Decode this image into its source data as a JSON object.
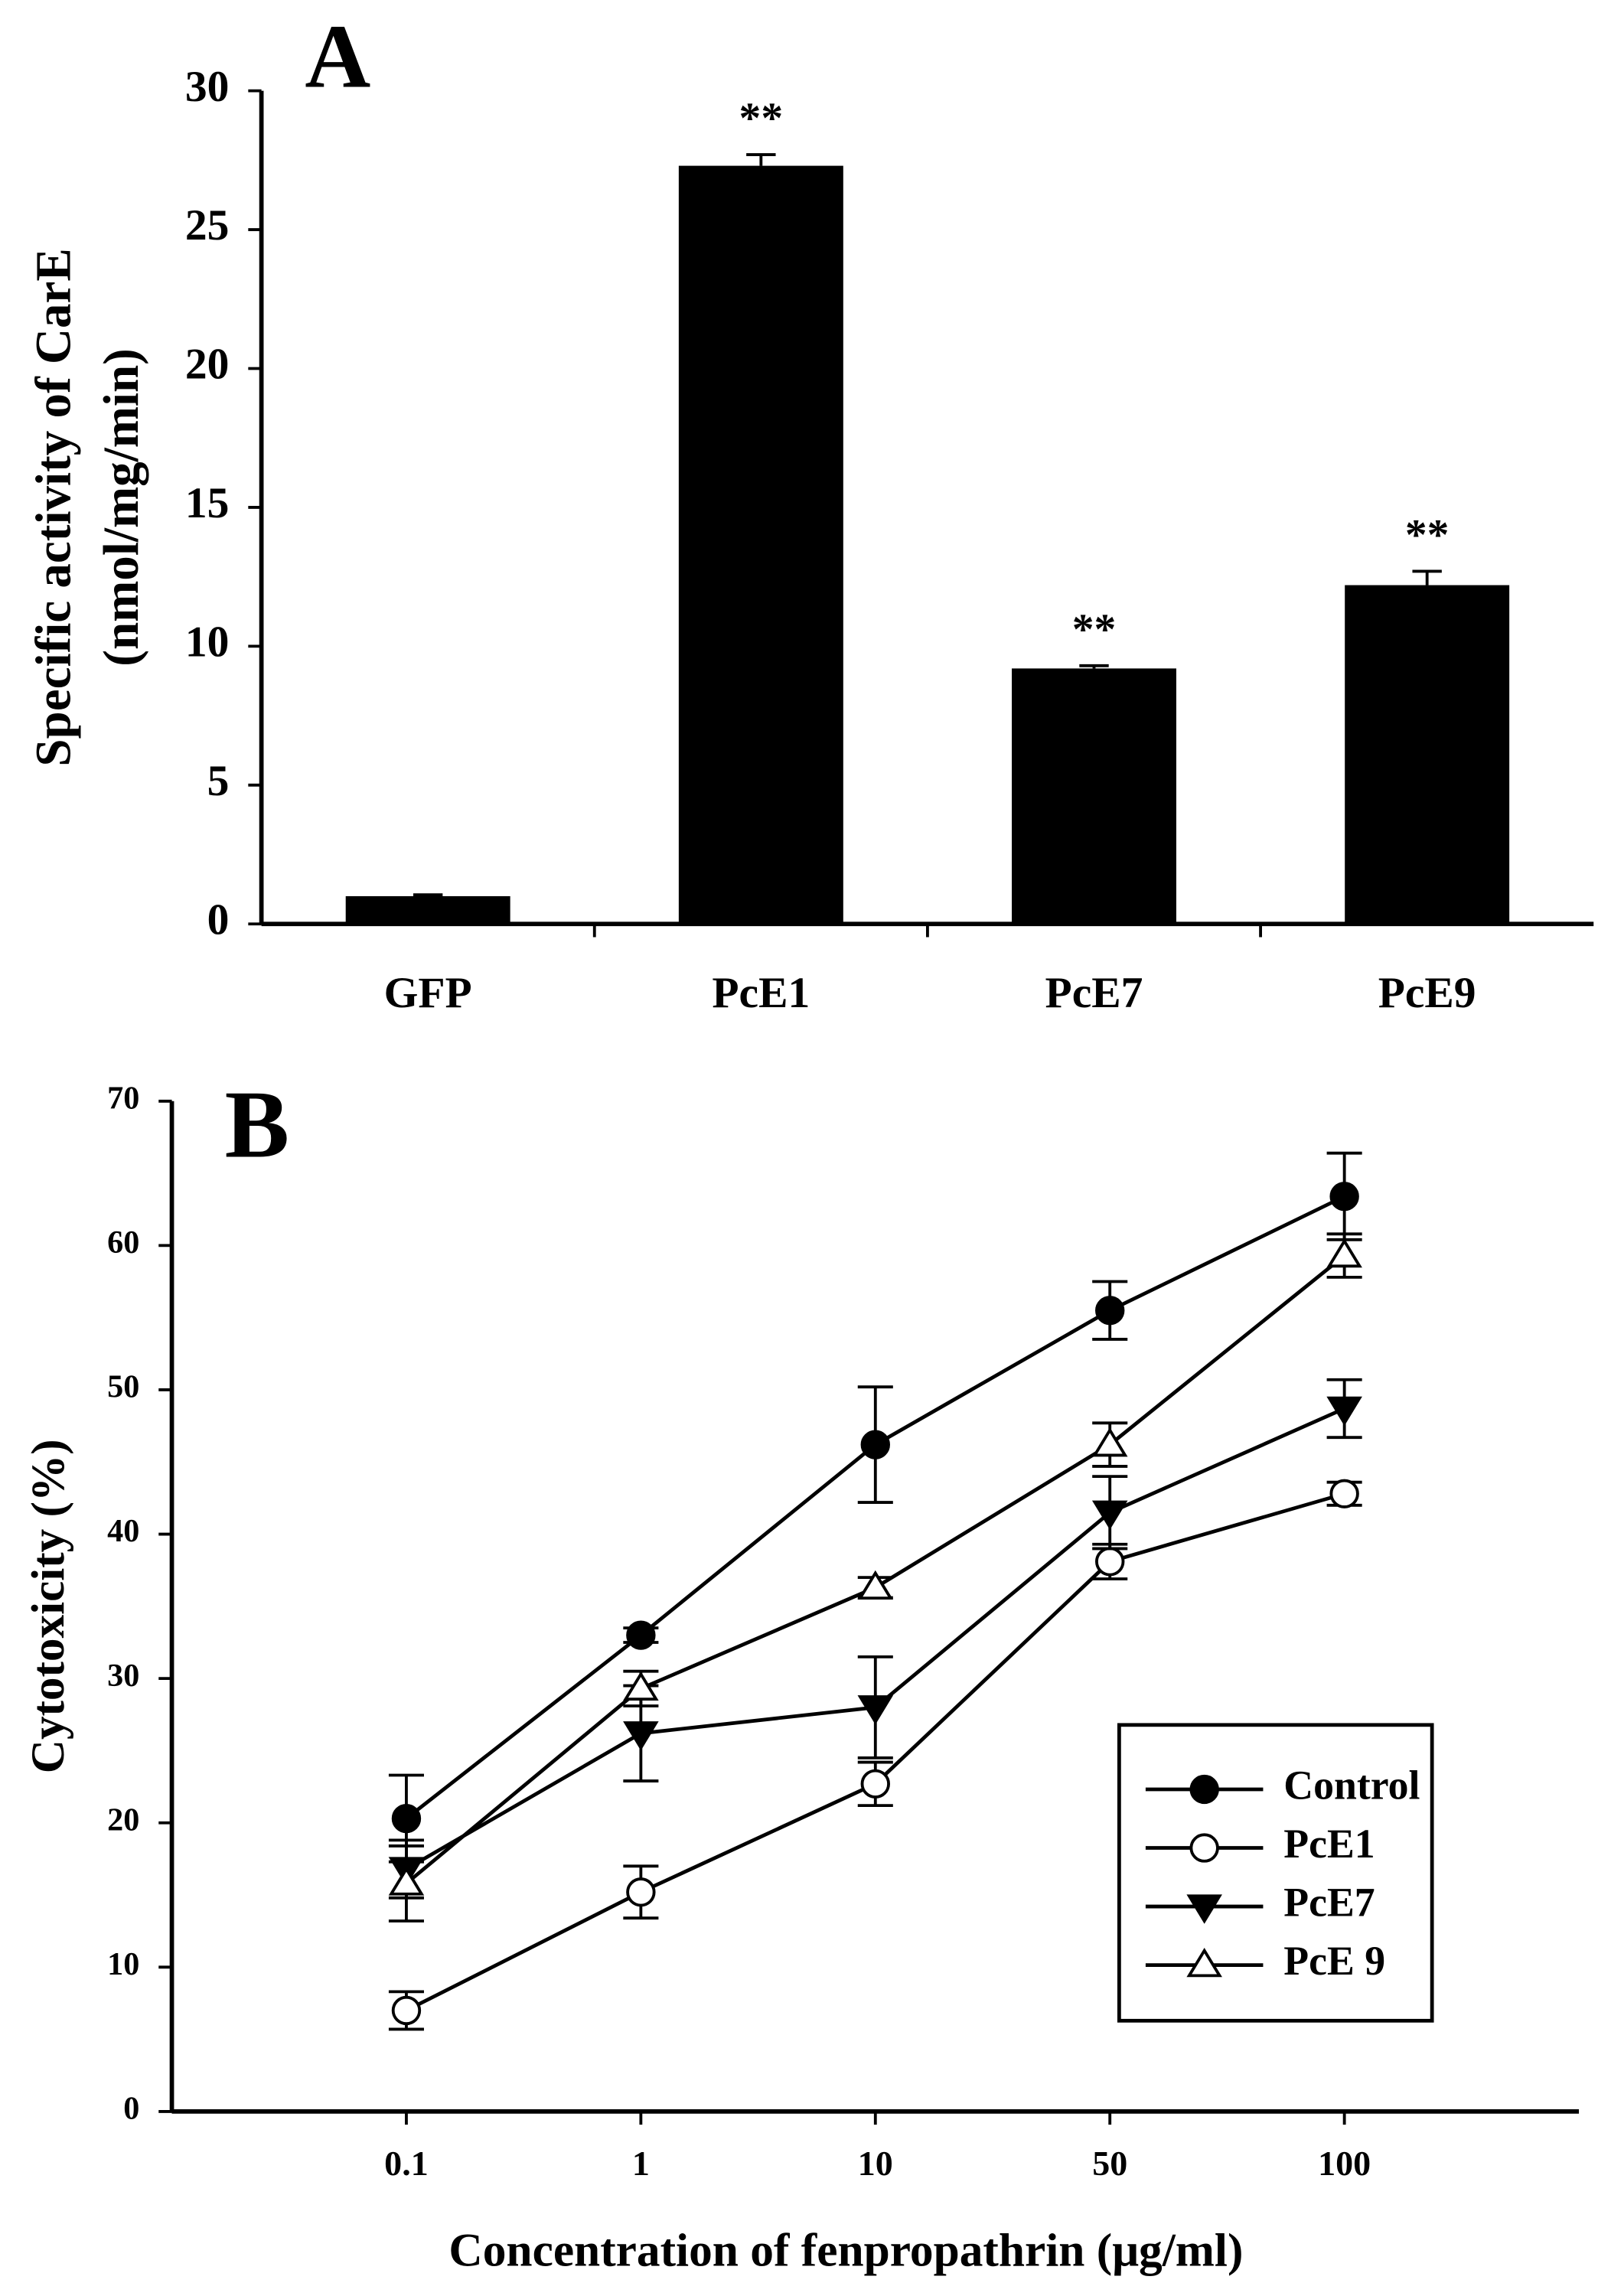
{
  "chart_data": [
    {
      "type": "bar",
      "panel": "A",
      "ylabel": [
        "Specific activity of CarE",
        "(nmol/mg/min)"
      ],
      "categories": [
        "GFP",
        "PcE1",
        "PcE7",
        "PcE9"
      ],
      "values": [
        1.0,
        27.3,
        9.2,
        12.2
      ],
      "errors": [
        0.05,
        0.4,
        0.1,
        0.5
      ],
      "color": "#000000",
      "annotations": [
        {
          "text": "**",
          "category": "PcE1"
        },
        {
          "text": "**",
          "category": "PcE7"
        },
        {
          "text": "**",
          "category": "PcE9"
        }
      ],
      "ylim": [
        0,
        30
      ],
      "yticks": [
        0,
        5,
        10,
        15,
        20,
        25,
        30
      ]
    },
    {
      "type": "line",
      "panel": "B",
      "ylabel": "Cytotoxicity (%)",
      "xlabel": "Concentration of fenpropathrin (μg/ml)",
      "categories": [
        "0.1",
        "1",
        "10",
        "50",
        "100"
      ],
      "series": [
        {
          "name": "Control",
          "color": "#000000",
          "marker": "circle",
          "filled": true,
          "values": [
            20.3,
            33.0,
            46.2,
            55.5,
            63.4
          ],
          "errors": [
            3.0,
            0.5,
            4.0,
            2.0,
            3.0
          ]
        },
        {
          "name": "PcE1",
          "color": "#000000",
          "marker": "circle",
          "filled": false,
          "values": [
            7.0,
            15.2,
            22.7,
            38.1,
            42.8
          ],
          "errors": [
            1.3,
            1.8,
            1.5,
            1.2,
            0.8
          ]
        },
        {
          "name": "PcE7",
          "color": "#000000",
          "marker": "triangle-down",
          "filled": true,
          "values": [
            16.8,
            26.2,
            28.0,
            41.5,
            48.7
          ],
          "errors": [
            2.0,
            3.3,
            3.5,
            2.5,
            2.0
          ]
        },
        {
          "name": "PcE 9",
          "color": "#000000",
          "marker": "triangle-up",
          "filled": false,
          "values": [
            15.8,
            29.3,
            36.3,
            46.2,
            59.3
          ],
          "errors": [
            2.6,
            1.2,
            0.7,
            1.5,
            1.5
          ]
        }
      ],
      "ylim": [
        0,
        70
      ],
      "yticks": [
        0,
        10,
        20,
        30,
        40,
        50,
        60,
        70
      ],
      "legend": "lower right"
    }
  ]
}
